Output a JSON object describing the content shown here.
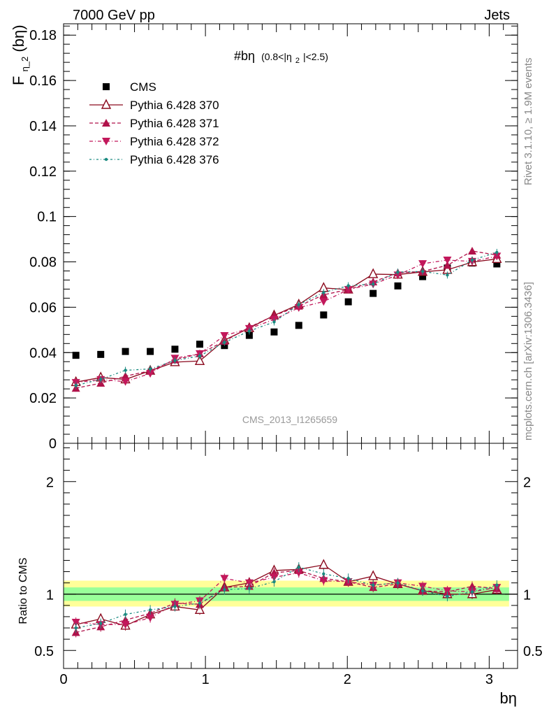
{
  "header": {
    "left": "7000 GeV pp",
    "right": "Jets"
  },
  "side_text": {
    "rivet": "Rivet 3.1.10, ≥ 1.9M events",
    "mcplots": "mcplots.cern.ch [arXiv:1306.3436]"
  },
  "watermark": "CMS_2013_I1265659",
  "plot_title": {
    "main": "#bη",
    "cut": "(0.8<|η",
    "cut_sub": "2",
    "cut_end": "|<2.5)"
  },
  "colors": {
    "cms": "#000000",
    "p370": "#8b0a1e",
    "p371": "#b0124a",
    "p372": "#c2185b",
    "p376": "#1a8a80",
    "band_outer": "#ffff99",
    "band_inner": "#99ff99"
  },
  "chart_data": [
    {
      "type": "line",
      "panel": "main",
      "xlabel": "bη",
      "ylabel": "F",
      "ylabel_sub": "η_2",
      "ylabel_end": "(bη)",
      "xlim": [
        0,
        3.2
      ],
      "ylim": [
        0,
        0.185
      ],
      "yticks": [
        0.02,
        0.04,
        0.06,
        0.08,
        0.1,
        0.12,
        0.14,
        0.16,
        0.18
      ],
      "ytick_labels": [
        "0.02",
        "0.04",
        "0.06",
        "0.08",
        "0.1",
        "0.12",
        "0.14",
        "0.16",
        "0.18"
      ],
      "y_zero_label": "0",
      "x": [
        0.087,
        0.262,
        0.436,
        0.611,
        0.785,
        0.96,
        1.134,
        1.309,
        1.484,
        1.658,
        1.833,
        2.007,
        2.182,
        2.356,
        2.531,
        2.705,
        2.88,
        3.054
      ],
      "legend_position": "top-left",
      "series": [
        {
          "name": "CMS",
          "marker": "square",
          "values": [
            0.0388,
            0.0392,
            0.0405,
            0.0405,
            0.0415,
            0.0437,
            0.0431,
            0.0476,
            0.0491,
            0.052,
            0.0566,
            0.0624,
            0.0661,
            0.0694,
            0.0735,
            0.0773,
            0.0795,
            0.0791
          ]
        },
        {
          "name": "Pythia 6.428 370",
          "marker": "triangle-up-open",
          "values": [
            0.027,
            0.029,
            0.0282,
            0.032,
            0.0358,
            0.0363,
            0.0455,
            0.0508,
            0.0564,
            0.0612,
            0.0685,
            0.0678,
            0.0746,
            0.0744,
            0.0756,
            0.0765,
            0.0799,
            0.0813
          ]
        },
        {
          "name": "Pythia 6.428 371",
          "marker": "triangle-up",
          "values": [
            0.0243,
            0.0265,
            0.0296,
            0.032,
            0.0368,
            0.0395,
            0.045,
            0.0512,
            0.0563,
            0.0605,
            0.0655,
            0.0678,
            0.0712,
            0.0752,
            0.0758,
            0.0785,
            0.0848,
            0.083
          ]
        },
        {
          "name": "Pythia 6.428 372",
          "marker": "triangle-down",
          "values": [
            0.0268,
            0.0281,
            0.0272,
            0.0308,
            0.0375,
            0.0395,
            0.0475,
            0.0506,
            0.0546,
            0.0598,
            0.0625,
            0.0678,
            0.0702,
            0.0742,
            0.0792,
            0.0808,
            0.0802,
            0.0825
          ]
        },
        {
          "name": "Pythia 6.428 376",
          "marker": "dot",
          "values": [
            0.0255,
            0.0282,
            0.0322,
            0.0328,
            0.0365,
            0.0385,
            0.0445,
            0.0495,
            0.0535,
            0.0612,
            0.0665,
            0.0695,
            0.0702,
            0.0755,
            0.0758,
            0.0742,
            0.0808,
            0.0842
          ]
        }
      ]
    },
    {
      "type": "line",
      "panel": "ratio",
      "xlabel": "bη",
      "ylabel": "Ratio to CMS",
      "xlim": [
        0,
        3.2
      ],
      "ylim": [
        0.34,
        2.34
      ],
      "xticks": [
        0,
        1,
        2,
        3
      ],
      "xtick_labels": [
        "0",
        "1",
        "2",
        "3"
      ],
      "yticks": [
        0.5,
        1,
        2
      ],
      "ytick_labels": [
        "0.5",
        "1",
        "2"
      ],
      "x": [
        0.087,
        0.262,
        0.436,
        0.611,
        0.785,
        0.96,
        1.134,
        1.309,
        1.484,
        1.658,
        1.833,
        2.007,
        2.182,
        2.356,
        2.531,
        2.705,
        2.88,
        3.054
      ],
      "series": [
        {
          "name": "Pythia 6.428 370",
          "values": [
            0.73,
            0.78,
            0.72,
            0.82,
            0.89,
            0.86,
            1.06,
            1.1,
            1.21,
            1.22,
            1.26,
            1.11,
            1.16,
            1.09,
            1.03,
            1.0,
            1.0,
            1.04
          ]
        },
        {
          "name": "Pythia 6.428 371",
          "values": [
            0.66,
            0.71,
            0.77,
            0.83,
            0.92,
            0.91,
            1.06,
            1.07,
            1.19,
            1.21,
            1.14,
            1.11,
            1.06,
            1.09,
            1.03,
            1.02,
            1.07,
            1.05
          ]
        },
        {
          "name": "Pythia 6.428 372",
          "values": [
            0.75,
            0.73,
            0.73,
            0.79,
            0.91,
            0.94,
            1.14,
            1.1,
            1.15,
            1.19,
            1.12,
            1.11,
            1.08,
            1.1,
            1.07,
            1.03,
            1.02,
            1.06
          ]
        },
        {
          "name": "Pythia 6.428 376",
          "values": [
            0.7,
            0.74,
            0.82,
            0.86,
            0.89,
            0.92,
            1.04,
            1.05,
            1.11,
            1.24,
            1.18,
            1.14,
            1.08,
            1.1,
            1.03,
            0.98,
            1.02,
            1.08
          ]
        }
      ],
      "band_outer": [
        0.89,
        1.12
      ],
      "band_inner": [
        0.94,
        1.06
      ]
    }
  ]
}
